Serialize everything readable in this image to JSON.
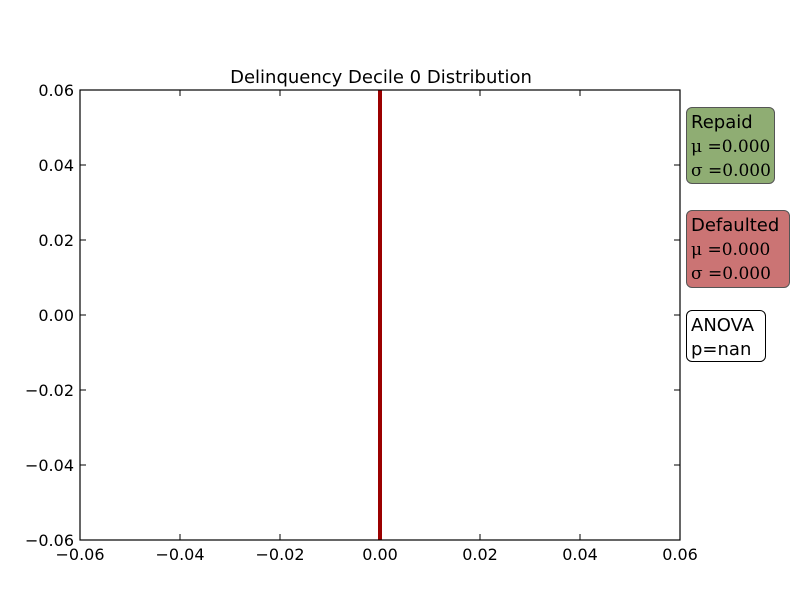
{
  "chart_data": {
    "type": "line",
    "title": "Delinquency Decile 0 Distribution",
    "xlabel": "",
    "ylabel": "",
    "xlim": [
      -0.06,
      0.06
    ],
    "ylim": [
      -0.06,
      0.06
    ],
    "x_ticks": [
      -0.06,
      -0.04,
      -0.02,
      0.0,
      0.02,
      0.04,
      0.06
    ],
    "x_tick_labels": [
      "−0.06",
      "−0.04",
      "−0.02",
      "0.00",
      "0.02",
      "0.04",
      "0.06"
    ],
    "y_ticks": [
      0.06,
      0.04,
      0.02,
      0.0,
      -0.02,
      -0.04,
      -0.06
    ],
    "y_tick_labels": [
      "0.06",
      "0.04",
      "0.02",
      "0.00",
      "−0.02",
      "−0.04",
      "−0.06"
    ],
    "grid": false,
    "series": [
      {
        "color": "#9b0000",
        "orientation": "vertical",
        "x": 0.0
      }
    ],
    "annotations": [
      {
        "id": "repaid",
        "heading": "Repaid",
        "lines": [
          "μ =0.000",
          "σ =0.000"
        ],
        "color": "#8fad73"
      },
      {
        "id": "defaulted",
        "heading": "Defaulted",
        "lines": [
          "μ =0.000",
          "σ =0.000"
        ],
        "color": "#cb7474"
      },
      {
        "id": "anova",
        "heading": "ANOVA",
        "lines": [
          "p=nan"
        ],
        "color": "#ffffff"
      }
    ]
  }
}
